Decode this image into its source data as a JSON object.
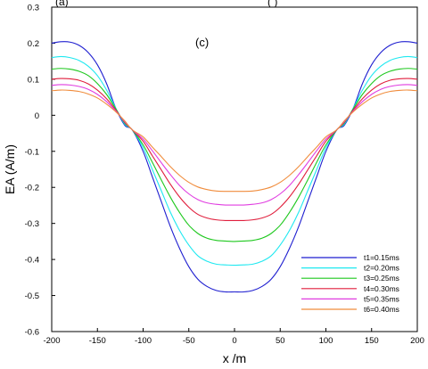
{
  "chart_data": {
    "type": "line",
    "title": "",
    "panel_label": "(c)",
    "xlabel": "x /m",
    "ylabel": "EA  (A/m)",
    "xlim": [
      -200,
      200
    ],
    "ylim": [
      -0.6,
      0.3
    ],
    "x_ticks": [
      -200,
      -150,
      -100,
      -50,
      0,
      50,
      100,
      150,
      200
    ],
    "x_tick_labels": [
      "-200",
      "-150",
      "-100",
      "-50",
      "0",
      "50",
      "100",
      "150",
      "200"
    ],
    "y_ticks": [
      0.3,
      0.2,
      0.1,
      0,
      -0.1,
      -0.2,
      -0.3,
      -0.4,
      -0.5,
      -0.6
    ],
    "y_tick_labels": [
      "0.3",
      "0.2",
      "0.1",
      "0",
      "-0.1",
      "-0.2",
      "-0.3",
      "-0.4",
      "-0.5",
      "-0.6"
    ],
    "grid": false,
    "legend_position": "bottom-right",
    "x": [
      -200,
      -190,
      -180,
      -170,
      -160,
      -150,
      -140,
      -130,
      -120,
      -112,
      -100,
      -90,
      -80,
      -70,
      -60,
      -50,
      -40,
      -30,
      -20,
      -10,
      0,
      10,
      20,
      30,
      40,
      50,
      60,
      70,
      80,
      90,
      100,
      112,
      120,
      130,
      140,
      150,
      160,
      170,
      180,
      190,
      200
    ],
    "series": [
      {
        "name": "t1=0.15ms",
        "color": "#1f1fd0",
        "values": [
          0.2,
          0.204,
          0.203,
          0.194,
          0.174,
          0.14,
          0.088,
          0.02,
          -0.028,
          -0.04,
          -0.1,
          -0.17,
          -0.24,
          -0.31,
          -0.37,
          -0.42,
          -0.455,
          -0.475,
          -0.486,
          -0.49,
          -0.49,
          -0.49,
          -0.486,
          -0.475,
          -0.455,
          -0.42,
          -0.37,
          -0.31,
          -0.24,
          -0.17,
          -0.1,
          -0.04,
          -0.028,
          0.02,
          0.088,
          0.14,
          0.174,
          0.194,
          0.203,
          0.204,
          0.2
        ]
      },
      {
        "name": "t2=0.20ms",
        "color": "#1ee8f0",
        "values": [
          0.16,
          0.163,
          0.16,
          0.152,
          0.136,
          0.11,
          0.07,
          0.02,
          -0.025,
          -0.04,
          -0.09,
          -0.15,
          -0.21,
          -0.27,
          -0.32,
          -0.36,
          -0.39,
          -0.405,
          -0.413,
          -0.415,
          -0.416,
          -0.415,
          -0.413,
          -0.405,
          -0.39,
          -0.36,
          -0.32,
          -0.27,
          -0.21,
          -0.15,
          -0.09,
          -0.04,
          -0.025,
          0.02,
          0.07,
          0.11,
          0.136,
          0.152,
          0.16,
          0.163,
          0.16
        ]
      },
      {
        "name": "t3=0.25ms",
        "color": "#1ec81e",
        "values": [
          0.128,
          0.13,
          0.128,
          0.122,
          0.11,
          0.088,
          0.058,
          0.018,
          -0.022,
          -0.04,
          -0.082,
          -0.13,
          -0.18,
          -0.228,
          -0.27,
          -0.305,
          -0.328,
          -0.341,
          -0.347,
          -0.349,
          -0.35,
          -0.349,
          -0.347,
          -0.341,
          -0.328,
          -0.305,
          -0.27,
          -0.228,
          -0.18,
          -0.13,
          -0.082,
          -0.04,
          -0.022,
          0.018,
          0.058,
          0.088,
          0.11,
          0.122,
          0.128,
          0.13,
          0.128
        ]
      },
      {
        "name": "t4=0.30ms",
        "color": "#e01e3c",
        "values": [
          0.1,
          0.102,
          0.101,
          0.097,
          0.087,
          0.07,
          0.046,
          0.015,
          -0.02,
          -0.04,
          -0.072,
          -0.112,
          -0.152,
          -0.192,
          -0.227,
          -0.255,
          -0.275,
          -0.285,
          -0.29,
          -0.292,
          -0.292,
          -0.292,
          -0.29,
          -0.285,
          -0.275,
          -0.255,
          -0.227,
          -0.192,
          -0.152,
          -0.112,
          -0.072,
          -0.04,
          -0.02,
          0.015,
          0.046,
          0.07,
          0.087,
          0.097,
          0.101,
          0.102,
          0.1
        ]
      },
      {
        "name": "t5=0.35ms",
        "color": "#e03ce0",
        "values": [
          0.083,
          0.085,
          0.084,
          0.08,
          0.072,
          0.058,
          0.038,
          0.012,
          -0.018,
          -0.04,
          -0.066,
          -0.098,
          -0.132,
          -0.165,
          -0.195,
          -0.218,
          -0.234,
          -0.243,
          -0.247,
          -0.249,
          -0.249,
          -0.249,
          -0.247,
          -0.243,
          -0.234,
          -0.218,
          -0.195,
          -0.165,
          -0.132,
          -0.098,
          -0.066,
          -0.04,
          -0.018,
          0.012,
          0.038,
          0.058,
          0.072,
          0.08,
          0.084,
          0.085,
          0.083
        ]
      },
      {
        "name": "t6=0.40ms",
        "color": "#f08c3c",
        "values": [
          0.068,
          0.07,
          0.069,
          0.066,
          0.059,
          0.048,
          0.031,
          0.01,
          -0.016,
          -0.04,
          -0.06,
          -0.088,
          -0.115,
          -0.143,
          -0.167,
          -0.186,
          -0.199,
          -0.206,
          -0.21,
          -0.211,
          -0.211,
          -0.211,
          -0.21,
          -0.206,
          -0.199,
          -0.186,
          -0.167,
          -0.143,
          -0.115,
          -0.088,
          -0.06,
          -0.04,
          -0.016,
          0.01,
          0.031,
          0.048,
          0.059,
          0.066,
          0.069,
          0.07,
          0.068
        ]
      }
    ]
  }
}
